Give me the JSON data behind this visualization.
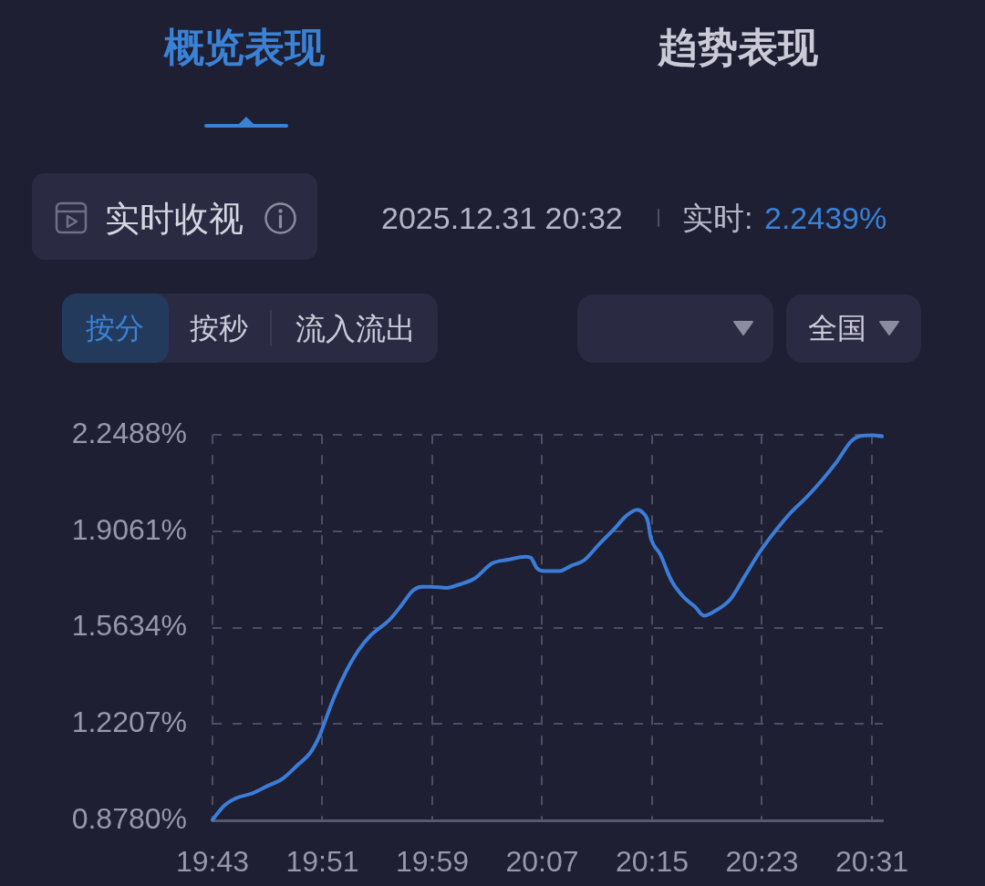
{
  "chart_data": {
    "type": "line",
    "title": "实时收视",
    "annotations": [
      "概览表现",
      "趋势表现",
      "2025.12.31 20:32",
      "实时:",
      "2.2439%",
      "按分",
      "按秒",
      "流入流出",
      "全国"
    ],
    "x": [
      19.7167,
      19.731,
      19.746,
      19.765,
      19.783,
      19.802,
      19.82,
      19.835,
      19.846,
      19.853,
      19.864,
      19.879,
      19.894,
      19.909,
      19.931,
      19.946,
      19.96,
      19.971,
      19.982,
      20.001,
      20.016,
      20.034,
      20.056,
      20.075,
      20.097,
      20.103,
      20.11,
      20.119,
      20.138,
      20.152,
      20.167,
      20.186,
      20.204,
      20.219,
      20.232,
      20.239,
      20.245,
      20.248,
      20.26,
      20.274,
      20.289,
      20.302,
      20.313,
      20.326,
      20.345,
      20.363,
      20.381,
      20.4,
      20.418,
      20.437,
      20.455,
      20.474,
      20.492,
      20.503,
      20.518,
      20.529
    ],
    "values": [
      0.88,
      0.931,
      0.958,
      0.974,
      1.0,
      1.027,
      1.075,
      1.117,
      1.175,
      1.229,
      1.314,
      1.409,
      1.484,
      1.537,
      1.59,
      1.643,
      1.696,
      1.709,
      1.709,
      1.705,
      1.717,
      1.737,
      1.792,
      1.805,
      1.816,
      1.812,
      1.776,
      1.765,
      1.765,
      1.784,
      1.802,
      1.861,
      1.914,
      1.962,
      1.983,
      1.972,
      1.941,
      1.888,
      1.824,
      1.728,
      1.67,
      1.638,
      1.606,
      1.622,
      1.664,
      1.749,
      1.834,
      1.909,
      1.972,
      2.026,
      2.084,
      2.153,
      2.228,
      2.245,
      2.248,
      2.244
    ],
    "color": "#3b7dd8",
    "xlim": [
      19.7167,
      20.53
    ],
    "xticks": [
      {
        "value": 19.7167,
        "label": "19:43"
      },
      {
        "value": 19.85,
        "label": "19:51"
      },
      {
        "value": 19.9833,
        "label": "19:59"
      },
      {
        "value": 20.1167,
        "label": "20:07"
      },
      {
        "value": 20.25,
        "label": "20:15"
      },
      {
        "value": 20.3833,
        "label": "20:23"
      },
      {
        "value": 20.5167,
        "label": "20:31"
      }
    ],
    "ylim": [
      0.878,
      2.2488
    ],
    "yticks": [
      {
        "value": 0.878,
        "label": "0.8780%"
      },
      {
        "value": 1.2207,
        "label": "1.2207%"
      },
      {
        "value": 1.5634,
        "label": "1.5634%"
      },
      {
        "value": 1.9061,
        "label": "1.9061%"
      },
      {
        "value": 2.2488,
        "label": "2.2488%"
      }
    ],
    "grid": true
  }
}
